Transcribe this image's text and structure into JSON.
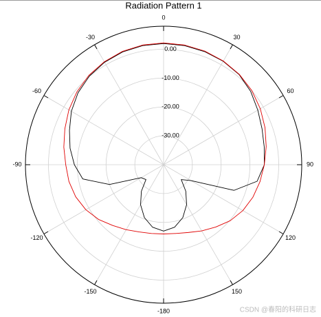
{
  "chart_data": {
    "type": "polar",
    "title": "Radiation Pattern 1",
    "x": [
      -180,
      -170,
      -160,
      -150,
      -140,
      -130,
      -120,
      -110,
      -100,
      -90,
      -80,
      -70,
      -60,
      -50,
      -40,
      -30,
      -20,
      -10,
      0,
      10,
      20,
      30,
      40,
      50,
      60,
      70,
      80,
      90,
      100,
      110,
      120,
      130,
      140,
      150,
      160,
      170,
      180
    ],
    "series": [
      {
        "color": "#000000",
        "values": [
          -17,
          -18,
          -20.5,
          -24,
          -28,
          -32,
          -31,
          -20,
          -11.5,
          -9,
          -7,
          -5.2,
          -3,
          -1.2,
          0.1,
          1.0,
          1.6,
          1.9,
          2.0,
          1.9,
          1.7,
          1.4,
          0.8,
          -0.5,
          -2.2,
          -3.6,
          -4.5,
          -5,
          -7,
          -14,
          -29,
          -32,
          -28,
          -24,
          -20.5,
          -18,
          -17
        ]
      },
      {
        "color": "#e00000",
        "values": [
          -16,
          -15.8,
          -15.2,
          -14,
          -12.5,
          -10.5,
          -8.8,
          -7.5,
          -6.6,
          -6,
          -4.8,
          -3.5,
          -2,
          -0.7,
          0.4,
          1.2,
          1.8,
          2.1,
          2.2,
          2.1,
          1.9,
          1.5,
          0.9,
          0,
          -1.2,
          -2.5,
          -3.8,
          -5,
          -6,
          -7,
          -8.2,
          -9.8,
          -11.8,
          -13.5,
          -15,
          -15.8,
          -16
        ]
      }
    ],
    "ylim": [
      -40,
      8
    ],
    "yticks": [
      {
        "value": 0,
        "label": "0.00"
      },
      {
        "value": -10,
        "label": "-10.00"
      },
      {
        "value": -20,
        "label": "-20.00"
      },
      {
        "value": -30,
        "label": "-30.00"
      }
    ],
    "xticks": [
      0,
      30,
      60,
      90,
      120,
      150,
      -180,
      -150,
      -120,
      -90,
      -60,
      -30
    ],
    "grid": true,
    "watermark": "CSDN @春阳的科研日志"
  }
}
